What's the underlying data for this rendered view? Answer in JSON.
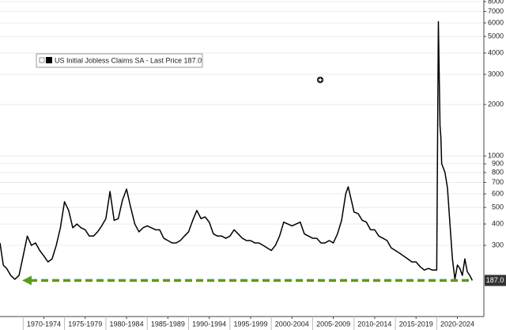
{
  "chart_data": {
    "type": "line",
    "log_scale": true,
    "grid": true,
    "x": [
      1967.2,
      1967.6,
      1968.0,
      1968.5,
      1969.0,
      1969.5,
      1970.0,
      1970.5,
      1971.0,
      1971.5,
      1972.0,
      1972.5,
      1973.0,
      1973.5,
      1974.0,
      1974.5,
      1975.0,
      1975.5,
      1976.0,
      1976.5,
      1977.0,
      1977.5,
      1978.0,
      1978.5,
      1979.0,
      1979.5,
      1980.0,
      1980.5,
      1981.0,
      1981.5,
      1982.0,
      1982.5,
      1983.0,
      1983.5,
      1984.0,
      1984.5,
      1985.0,
      1985.5,
      1986.0,
      1986.5,
      1987.0,
      1987.5,
      1988.0,
      1988.5,
      1989.0,
      1989.5,
      1990.0,
      1990.5,
      1991.0,
      1991.5,
      1992.0,
      1992.5,
      1993.0,
      1993.5,
      1994.0,
      1994.5,
      1995.0,
      1995.5,
      1996.0,
      1996.5,
      1997.0,
      1997.5,
      1998.0,
      1998.5,
      1999.0,
      1999.5,
      2000.0,
      2000.5,
      2001.0,
      2001.5,
      2002.0,
      2002.5,
      2003.0,
      2003.5,
      2004.0,
      2004.5,
      2005.0,
      2005.5,
      2006.0,
      2006.5,
      2007.0,
      2007.5,
      2008.0,
      2008.5,
      2009.0,
      2009.3,
      2009.8,
      2010.0,
      2010.5,
      2011.0,
      2011.5,
      2012.0,
      2012.5,
      2013.0,
      2013.5,
      2014.0,
      2014.5,
      2015.0,
      2015.5,
      2016.0,
      2016.5,
      2017.0,
      2017.5,
      2018.0,
      2018.5,
      2019.0,
      2019.5,
      2020.0,
      2020.2,
      2020.3,
      2020.4,
      2020.5,
      2020.6,
      2020.8,
      2021.0,
      2021.3,
      2021.6,
      2021.9,
      2022.2,
      2022.5,
      2022.8,
      2023.1,
      2023.4,
      2023.7,
      2024.0,
      2024.3
    ],
    "series": [
      {
        "name": "US Initial Jobless Claims SA - Last Price 187.0",
        "color": "#000000",
        "values": [
          310,
          230,
          220,
          200,
          190,
          200,
          260,
          340,
          300,
          310,
          280,
          260,
          240,
          250,
          300,
          380,
          540,
          480,
          380,
          400,
          380,
          370,
          340,
          340,
          360,
          390,
          430,
          620,
          420,
          430,
          550,
          640,
          500,
          400,
          360,
          380,
          390,
          380,
          370,
          370,
          330,
          320,
          310,
          310,
          320,
          340,
          360,
          420,
          480,
          430,
          440,
          410,
          350,
          340,
          340,
          330,
          340,
          370,
          350,
          330,
          320,
          320,
          310,
          310,
          300,
          290,
          280,
          300,
          340,
          410,
          400,
          390,
          400,
          410,
          350,
          340,
          330,
          330,
          310,
          310,
          320,
          310,
          350,
          420,
          600,
          660,
          520,
          470,
          460,
          420,
          410,
          370,
          370,
          340,
          330,
          320,
          290,
          280,
          270,
          260,
          250,
          240,
          240,
          225,
          215,
          220,
          215,
          215,
          6100,
          3000,
          1500,
          1300,
          900,
          850,
          800,
          650,
          400,
          250,
          190,
          230,
          220,
          200,
          250,
          210,
          200,
          187
        ]
      }
    ],
    "last_price": 187,
    "last_price_label": "187.0",
    "last_price_color": "#5a9a1e",
    "xlim": [
      1967.2,
      2025.7
    ],
    "xticks": [
      {
        "value": 1972.5,
        "label": "1970-1974"
      },
      {
        "value": 1977.5,
        "label": "1975-1979"
      },
      {
        "value": 1982.5,
        "label": "1980-1984"
      },
      {
        "value": 1987.5,
        "label": "1985-1989"
      },
      {
        "value": 1992.5,
        "label": "1990-1994"
      },
      {
        "value": 1997.5,
        "label": "1995-1999"
      },
      {
        "value": 2002.5,
        "label": "2000-2004"
      },
      {
        "value": 2007.5,
        "label": "2005-2009"
      },
      {
        "value": 2012.5,
        "label": "2010-2014"
      },
      {
        "value": 2017.5,
        "label": "2015-2019"
      },
      {
        "value": 2022.5,
        "label": "2020-2024"
      }
    ],
    "ylim": [
      115,
      8170
    ],
    "yticks": [
      300,
      400,
      500,
      600,
      700,
      800,
      900,
      1000,
      2000,
      3000,
      4000,
      5000,
      6000,
      7000,
      8000
    ]
  }
}
